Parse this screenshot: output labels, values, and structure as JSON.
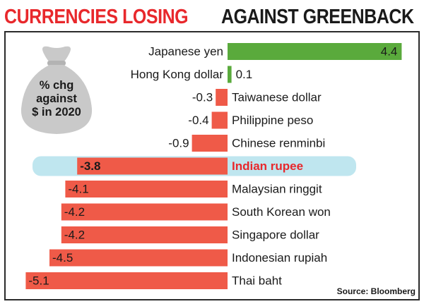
{
  "header": {
    "title_red": "CURRENCIES LOSING",
    "title_black": "AGAINST GREENBACK"
  },
  "badge": {
    "line1": "% chg",
    "line2": "against",
    "line3": "$ in 2020"
  },
  "source": "Source: Bloomberg",
  "colors": {
    "positive": "#5aaa3c",
    "negative": "#ef5a48",
    "highlight_band": "#bfe6ef",
    "highlight_text": "#e8282c",
    "bag": "#c9c9c9"
  },
  "chart_data": {
    "type": "bar",
    "orientation": "horizontal",
    "categories": [
      "Japanese yen",
      "Hong Kong dollar",
      "Taiwanese dollar",
      "Philippine peso",
      "Chinese renminbi",
      "Indian rupee",
      "Malaysian ringgit",
      "South Korean won",
      "Singapore dollar",
      "Indonesian rupiah",
      "Thai baht"
    ],
    "values": [
      4.4,
      0.1,
      -0.3,
      -0.4,
      -0.9,
      -3.8,
      -4.1,
      -4.2,
      -4.2,
      -4.5,
      -5.1
    ],
    "value_labels": [
      "4.4",
      "0.1",
      "-0.3",
      "-0.4",
      "-0.9",
      "-3.8",
      "-4.1",
      "-4.2",
      "-4.2",
      "-4.5",
      "-5.1"
    ],
    "highlight": "Indian rupee",
    "title": "CURRENCIES LOSING AGAINST GREENBACK",
    "xlim": [
      -5.1,
      4.4
    ]
  }
}
